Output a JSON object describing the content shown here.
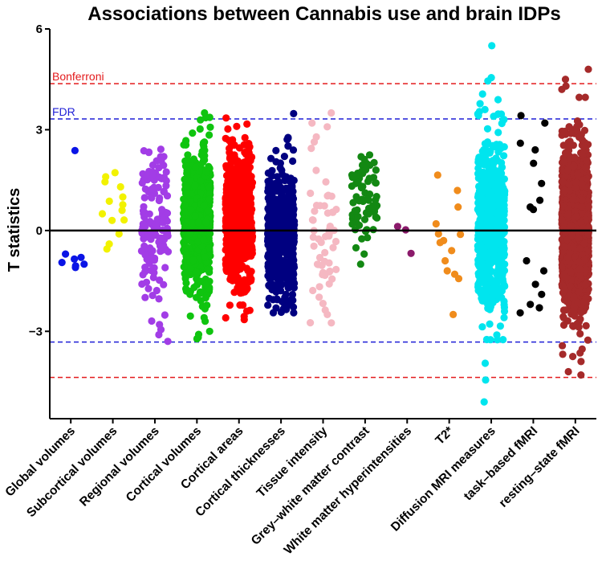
{
  "chart_data": {
    "type": "scatter",
    "title": "Associations between Cannabis use and brain IDPs",
    "xlabel": "",
    "ylabel": "T statistics",
    "ylim": [
      -5.6,
      6.0
    ],
    "yticks": [
      {
        "value": 6,
        "label": "6"
      },
      {
        "value": 3,
        "label": "3"
      },
      {
        "value": 0,
        "label": "0"
      },
      {
        "value": -3,
        "label": "−3"
      }
    ],
    "grid": false,
    "zero_line": 0,
    "reference_lines": [
      {
        "name": "Bonferroni",
        "value": 4.37,
        "color": "#e31a1c",
        "style": "dashed"
      },
      {
        "name": "FDR",
        "value": 3.32,
        "color": "#1f1fd6",
        "style": "dashed"
      }
    ],
    "reference_lines_negative": [
      {
        "name": "Bonferroni",
        "value": -4.37,
        "color": "#e31a1c",
        "style": "dashed"
      },
      {
        "name": "FDR",
        "value": -3.32,
        "color": "#1f1fd6",
        "style": "dashed"
      }
    ],
    "series": [
      {
        "name": "Global volumes",
        "color": "#0a14e6",
        "n": 8,
        "min": -1.12,
        "max": 2.38,
        "center": -0.9,
        "spread": 0.35,
        "highlights": [
          2.38,
          -0.7,
          -0.85,
          -1.0,
          -1.05,
          -1.1,
          -0.95,
          -0.8
        ]
      },
      {
        "name": "Subcortical volumes",
        "color": "#f2f200",
        "n": 14,
        "min": -0.55,
        "max": 1.72,
        "center": 0.6,
        "spread": 0.7,
        "highlights": [
          1.72,
          1.6,
          1.45,
          1.3,
          1.0,
          0.6,
          0.5,
          0.3,
          -0.1,
          -0.4,
          -0.55
        ]
      },
      {
        "name": "Regional volumes",
        "color": "#a23de6",
        "n": 150,
        "min": -3.3,
        "max": 2.42,
        "center": 0.2,
        "spread": 1.2,
        "highlights": [
          2.42,
          2.2,
          -3.3,
          -3.1,
          -2.8
        ]
      },
      {
        "name": "Cortical volumes",
        "color": "#0fc40f",
        "n": 700,
        "min": -3.22,
        "max": 3.5,
        "center": 0.3,
        "spread": 1.0,
        "highlights": [
          3.5,
          2.9,
          -3.22,
          -3.0
        ]
      },
      {
        "name": "Cortical areas",
        "color": "#ff0000",
        "n": 700,
        "min": -2.65,
        "max": 3.35,
        "center": 0.4,
        "spread": 1.0,
        "highlights": [
          3.35,
          3.1,
          -2.65,
          -2.4
        ]
      },
      {
        "name": "Cortical thicknesses",
        "color": "#000080",
        "n": 550,
        "min": -2.45,
        "max": 3.48,
        "center": -0.2,
        "spread": 1.0,
        "highlights": [
          3.48,
          2.75,
          -2.45,
          -2.35
        ]
      },
      {
        "name": "Tissue intensity",
        "color": "#f5b8c2",
        "n": 60,
        "min": -2.75,
        "max": 3.5,
        "center": 0.0,
        "spread": 1.4,
        "highlights": [
          3.5,
          3.2,
          -2.75,
          -2.5
        ]
      },
      {
        "name": "Grey–white matter contrast",
        "color": "#138813",
        "n": 70,
        "min": -1.0,
        "max": 2.25,
        "center": 0.9,
        "spread": 0.7,
        "highlights": [
          2.25,
          2.0,
          -1.0,
          -0.7
        ]
      },
      {
        "name": "White matter hyperintensities",
        "color": "#8b1a6b",
        "n": 3,
        "min": -0.68,
        "max": 0.12,
        "center": 0.0,
        "spread": 0.3,
        "highlights": [
          0.12,
          0.02,
          -0.68
        ]
      },
      {
        "name": "T2*",
        "color": "#f08c1c",
        "n": 14,
        "min": -2.5,
        "max": 1.65,
        "center": -0.5,
        "spread": 1.0,
        "highlights": [
          1.65,
          0.7,
          0.2,
          -0.1,
          -0.3,
          -0.6,
          -0.9,
          -1.2,
          -1.3,
          -2.5
        ]
      },
      {
        "name": "Diffusion MRI measures",
        "color": "#00e5ee",
        "n": 675,
        "min": -5.1,
        "max": 5.5,
        "center": 0.2,
        "spread": 1.3,
        "highlights": [
          5.5,
          4.55,
          4.45,
          -5.1,
          -4.45,
          -3.95
        ]
      },
      {
        "name": "task–based fMRI",
        "color": "#000000",
        "n": 16,
        "min": -2.45,
        "max": 3.42,
        "center": 0.5,
        "spread": 1.8,
        "highlights": [
          3.42,
          3.2,
          2.6,
          2.4,
          2.0,
          1.4,
          0.9,
          0.7,
          -0.9,
          -1.2,
          -1.6,
          -1.9,
          -2.2,
          -2.3,
          -2.45
        ]
      },
      {
        "name": "resting–state fMRI",
        "color": "#a52a2a",
        "n": 1400,
        "min": -4.3,
        "max": 4.8,
        "center": 0.0,
        "spread": 1.2,
        "highlights": [
          4.8,
          4.5,
          4.2,
          -4.3,
          -4.2,
          -3.9
        ]
      }
    ]
  }
}
